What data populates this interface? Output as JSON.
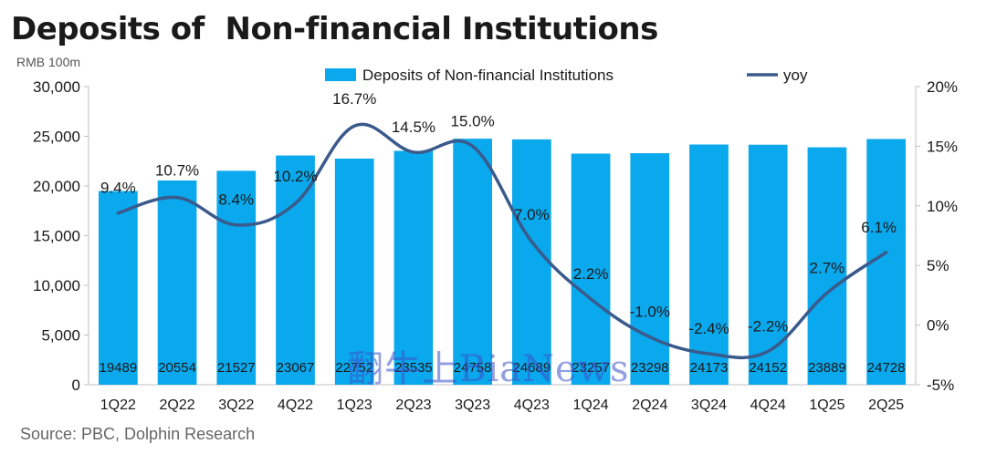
{
  "title": "Deposits of  Non-financial Institutions",
  "source": "Source: PBC, Dolphin Research",
  "watermark": "翻牛上BiaNews",
  "chart_data": {
    "type": "bar",
    "unit_label": "RMB 100m",
    "categories": [
      "1Q22",
      "2Q22",
      "3Q22",
      "4Q22",
      "1Q23",
      "2Q23",
      "3Q23",
      "4Q23",
      "1Q24",
      "2Q24",
      "3Q24",
      "4Q24",
      "1Q25",
      "2Q25"
    ],
    "series": [
      {
        "name": "Deposits of  Non-financial Institutions",
        "type": "bar",
        "axis": "left",
        "color": "#0aa8ec",
        "values": [
          19489,
          20554,
          21527,
          23067,
          22752,
          23535,
          24758,
          24689,
          23257,
          23298,
          24173,
          24152,
          23889,
          24728
        ],
        "labels": [
          "19489",
          "20554",
          "21527",
          "23067",
          "22752",
          "23535",
          "24758",
          "24689",
          "23257",
          "23298",
          "24173",
          "24152",
          "23889",
          "24728"
        ]
      },
      {
        "name": "yoy",
        "type": "line",
        "axis": "right",
        "color": "#3a5a8c",
        "values": [
          9.4,
          10.7,
          8.4,
          10.2,
          16.7,
          14.5,
          15.0,
          7.0,
          2.2,
          -1.0,
          -2.4,
          -2.2,
          2.7,
          6.1
        ],
        "labels": [
          "9.4%",
          "10.7%",
          "8.4%",
          "10.2%",
          "16.7%",
          "14.5%",
          "15.0%",
          "7.0%",
          "2.2%",
          "-1.0%",
          "-2.4%",
          "-2.2%",
          "2.7%",
          "6.1%"
        ]
      }
    ],
    "y_left": {
      "min": 0,
      "max": 30000,
      "ticks": [
        0,
        5000,
        10000,
        15000,
        20000,
        25000,
        30000
      ],
      "tick_labels": [
        "0",
        "5,000",
        "10,000",
        "15,000",
        "20,000",
        "25,000",
        "30,000"
      ]
    },
    "y_right": {
      "min": -5,
      "max": 20,
      "ticks": [
        -5,
        0,
        5,
        10,
        15,
        20
      ],
      "tick_labels": [
        "-5%",
        "0%",
        "5%",
        "10%",
        "15%",
        "20%"
      ]
    },
    "legend": {
      "position": "top"
    },
    "grid": false
  }
}
